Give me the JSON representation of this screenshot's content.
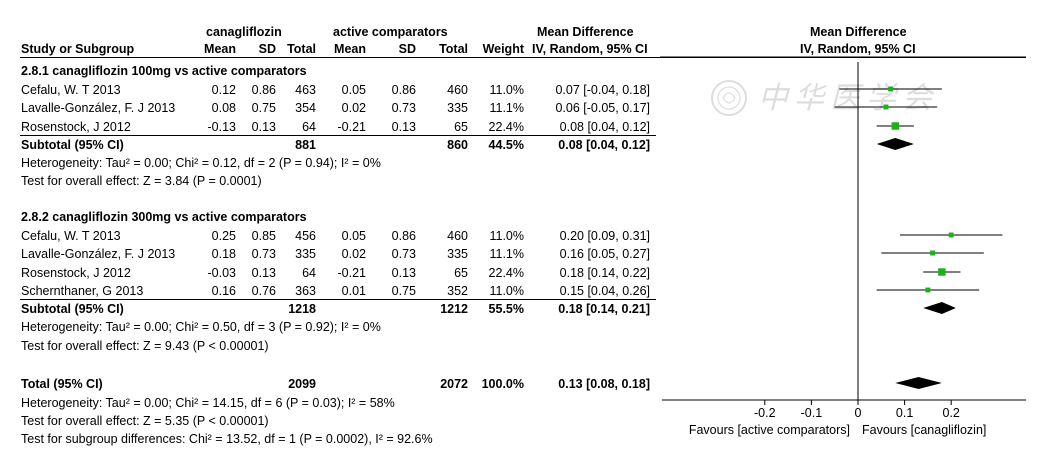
{
  "header": {
    "group1": "canagliflozin",
    "group2": "active comparators",
    "md_title": "Mean Difference",
    "plot_title": "Mean Difference",
    "col_study": "Study or Subgroup",
    "col_mean1": "Mean",
    "col_sd1": "SD",
    "col_total1": "Total",
    "col_mean2": "Mean",
    "col_sd2": "SD",
    "col_total2": "Total",
    "col_weight": "Weight",
    "col_ci": "IV, Random, 95% CI",
    "plot_ci": "IV, Random, 95% CI"
  },
  "subgroups": [
    {
      "title": "2.8.1 canagliflozin 100mg vs active comparators",
      "studies": [
        {
          "name": "Cefalu, W. T 2013",
          "mean1": "0.12",
          "sd1": "0.86",
          "total1": "463",
          "mean2": "0.05",
          "sd2": "0.86",
          "total2": "460",
          "weight": "11.0%",
          "ci": "0.07 [-0.04, 0.18]"
        },
        {
          "name": "Lavalle-González, F. J 2013",
          "mean1": "0.08",
          "sd1": "0.75",
          "total1": "354",
          "mean2": "0.02",
          "sd2": "0.73",
          "total2": "335",
          "weight": "11.1%",
          "ci": "0.06 [-0.05, 0.17]"
        },
        {
          "name": "Rosenstock, J 2012",
          "mean1": "-0.13",
          "sd1": "0.13",
          "total1": "64",
          "mean2": "-0.21",
          "sd2": "0.13",
          "total2": "65",
          "weight": "22.4%",
          "ci": "0.08 [0.04, 0.12]"
        }
      ],
      "subtotal": {
        "label": "Subtotal (95% CI)",
        "total1": "881",
        "total2": "860",
        "weight": "44.5%",
        "ci": "0.08 [0.04, 0.12]"
      },
      "heterogeneity": "Heterogeneity: Tau² = 0.00; Chi² = 0.12, df = 2 (P = 0.94); I² = 0%",
      "overall": "Test for overall effect: Z = 3.84 (P = 0.0001)"
    },
    {
      "title": "2.8.2 canagliflozin 300mg vs active comparators",
      "studies": [
        {
          "name": "Cefalu, W. T 2013",
          "mean1": "0.25",
          "sd1": "0.85",
          "total1": "456",
          "mean2": "0.05",
          "sd2": "0.86",
          "total2": "460",
          "weight": "11.0%",
          "ci": "0.20 [0.09, 0.31]"
        },
        {
          "name": "Lavalle-González, F. J 2013",
          "mean1": "0.18",
          "sd1": "0.73",
          "total1": "335",
          "mean2": "0.02",
          "sd2": "0.73",
          "total2": "335",
          "weight": "11.1%",
          "ci": "0.16 [0.05, 0.27]"
        },
        {
          "name": "Rosenstock, J 2012",
          "mean1": "-0.03",
          "sd1": "0.13",
          "total1": "64",
          "mean2": "-0.21",
          "sd2": "0.13",
          "total2": "65",
          "weight": "22.4%",
          "ci": "0.18 [0.14, 0.22]"
        },
        {
          "name": "Schernthaner, G 2013",
          "mean1": "0.16",
          "sd1": "0.76",
          "total1": "363",
          "mean2": "0.01",
          "sd2": "0.75",
          "total2": "352",
          "weight": "11.0%",
          "ci": "0.15 [0.04, 0.26]"
        }
      ],
      "subtotal": {
        "label": "Subtotal (95% CI)",
        "total1": "1218",
        "total2": "1212",
        "weight": "55.5%",
        "ci": "0.18 [0.14, 0.21]"
      },
      "heterogeneity": "Heterogeneity: Tau² = 0.00; Chi² = 0.50, df = 3 (P = 0.92); I² = 0%",
      "overall": "Test for overall effect: Z = 9.43 (P < 0.00001)"
    }
  ],
  "total": {
    "label": "Total (95% CI)",
    "total1": "2099",
    "total2": "2072",
    "weight": "100.0%",
    "ci": "0.13 [0.08, 0.18]",
    "heterogeneity": "Heterogeneity: Tau² = 0.00; Chi² = 14.15, df = 6 (P = 0.03); I² = 58%",
    "overall": "Test for overall effect: Z = 5.35 (P < 0.00001)",
    "subgroup_diff": "Test for subgroup differences: Chi² = 13.52, df = 1 (P = 0.0002), I² = 92.6%"
  },
  "axis": {
    "favours_left": "Favours [active comparators]",
    "favours_right": "Favours [canagliflozin]"
  },
  "watermark": "中华医学会",
  "colors": {
    "marker": "#19b319",
    "line": "#000000"
  },
  "chart_data": {
    "type": "forest",
    "xlim": [
      -0.2,
      0.2
    ],
    "ticks": [
      -0.2,
      -0.1,
      0,
      0.1,
      0.2
    ],
    "tick_labels": [
      "-0.2",
      "-0.1",
      "0",
      "0.1",
      "0.2"
    ],
    "studies": [
      {
        "est": 0.07,
        "lo": -0.04,
        "hi": 0.18,
        "weight": 11.0
      },
      {
        "est": 0.06,
        "lo": -0.05,
        "hi": 0.17,
        "weight": 11.1
      },
      {
        "est": 0.08,
        "lo": 0.04,
        "hi": 0.12,
        "weight": 22.4
      },
      {
        "est": 0.2,
        "lo": 0.09,
        "hi": 0.31,
        "weight": 11.0
      },
      {
        "est": 0.16,
        "lo": 0.05,
        "hi": 0.27,
        "weight": 11.1
      },
      {
        "est": 0.18,
        "lo": 0.14,
        "hi": 0.22,
        "weight": 22.4
      },
      {
        "est": 0.15,
        "lo": 0.04,
        "hi": 0.26,
        "weight": 11.0
      }
    ],
    "diamonds": [
      {
        "role": "subtotal-1",
        "est": 0.08,
        "lo": 0.04,
        "hi": 0.12
      },
      {
        "role": "subtotal-2",
        "est": 0.18,
        "lo": 0.14,
        "hi": 0.21
      },
      {
        "role": "total",
        "est": 0.13,
        "lo": 0.08,
        "hi": 0.18
      }
    ]
  }
}
